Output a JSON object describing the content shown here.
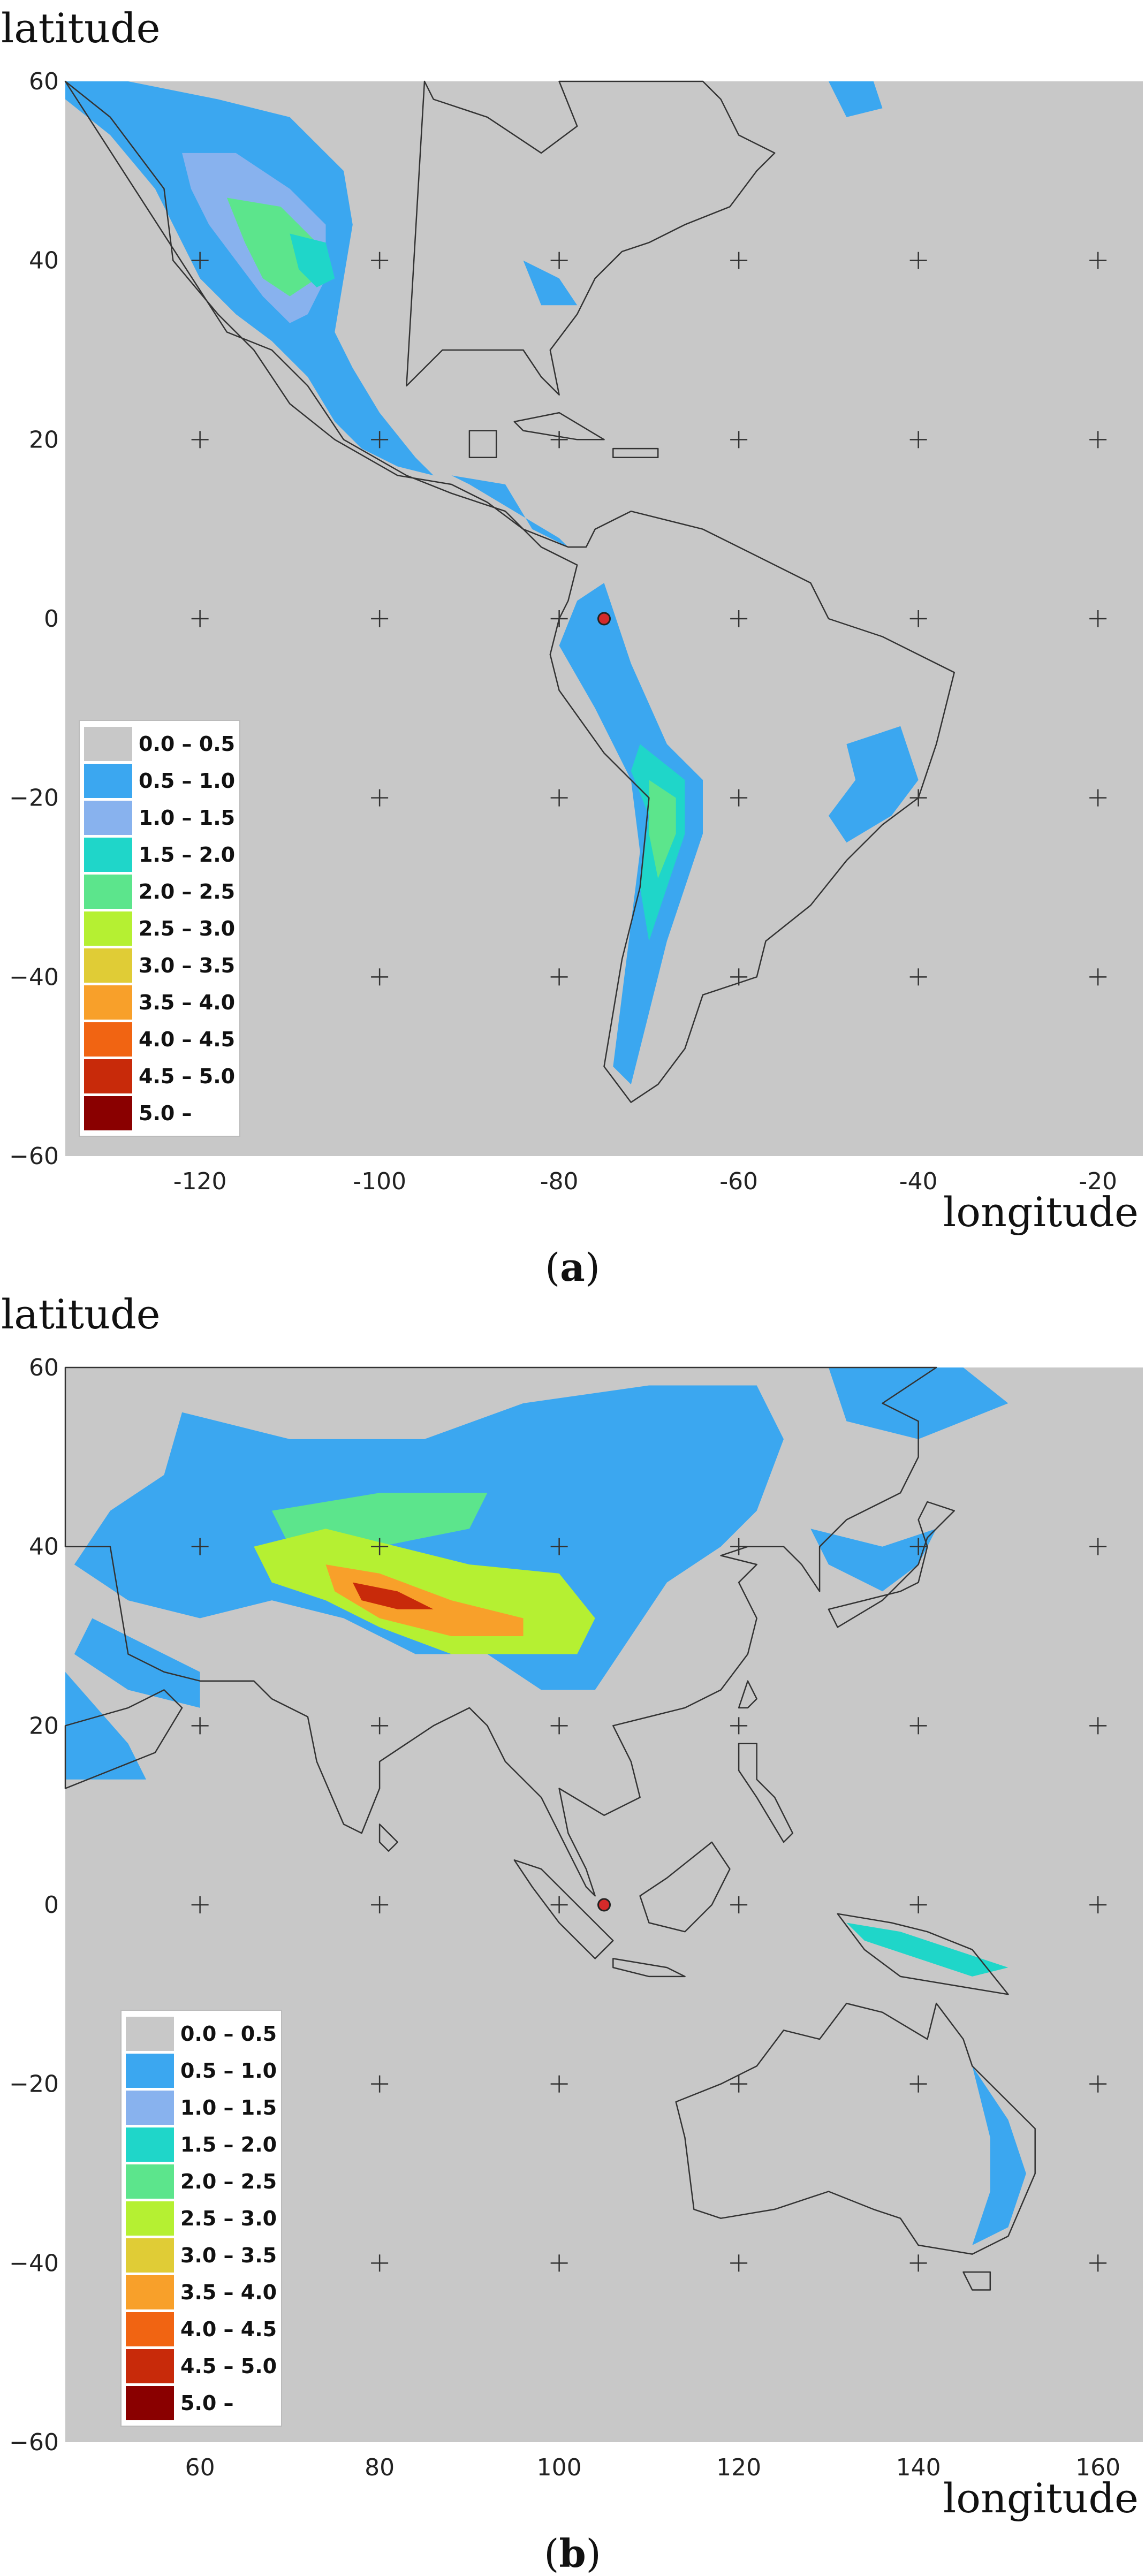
{
  "panels": [
    {
      "id": "a",
      "y_axis_label": "latitude",
      "x_axis_label": "longitude",
      "caption_label": "a",
      "x_range": [
        -135,
        -15
      ],
      "y_range": [
        -60,
        60
      ],
      "x_ticks": [
        -120,
        -100,
        -80,
        -60,
        -40,
        -20
      ],
      "y_ticks": [
        60,
        40,
        20,
        0,
        -20,
        -40,
        -60
      ],
      "marker": {
        "lon": -75,
        "lat": 0
      }
    },
    {
      "id": "b",
      "y_axis_label": "latitude",
      "x_axis_label": "longitude",
      "caption_label": "b",
      "x_range": [
        45,
        165
      ],
      "y_range": [
        -60,
        60
      ],
      "x_ticks": [
        60,
        80,
        100,
        120,
        140,
        160
      ],
      "y_ticks": [
        60,
        40,
        20,
        0,
        -20,
        -40,
        -60
      ],
      "marker": {
        "lon": 105,
        "lat": 0
      }
    }
  ],
  "legend": [
    {
      "label": "0.0 – 0.5",
      "color": "#c8c8c8"
    },
    {
      "label": "0.5 – 1.0",
      "color": "#3ba7f0"
    },
    {
      "label": "1.0 – 1.5",
      "color": "#88b2ee"
    },
    {
      "label": "1.5 – 2.0",
      "color": "#1fd6c9"
    },
    {
      "label": "2.0 – 2.5",
      "color": "#5ce58c"
    },
    {
      "label": "2.5 – 3.0",
      "color": "#b5f032"
    },
    {
      "label": "3.0 – 3.5",
      "color": "#e0cc36"
    },
    {
      "label": "3.5 – 4.0",
      "color": "#f8a02a"
    },
    {
      "label": "4.0 – 4.5",
      "color": "#f16412"
    },
    {
      "label": "4.5 – 5.0",
      "color": "#c82a0a"
    },
    {
      "label": "5.0 –",
      "color": "#8a0000"
    }
  ],
  "colors": {
    "ocean_land_background": "#c8c8c8",
    "coastline": "#333333",
    "marker": "#d42a2a"
  }
}
